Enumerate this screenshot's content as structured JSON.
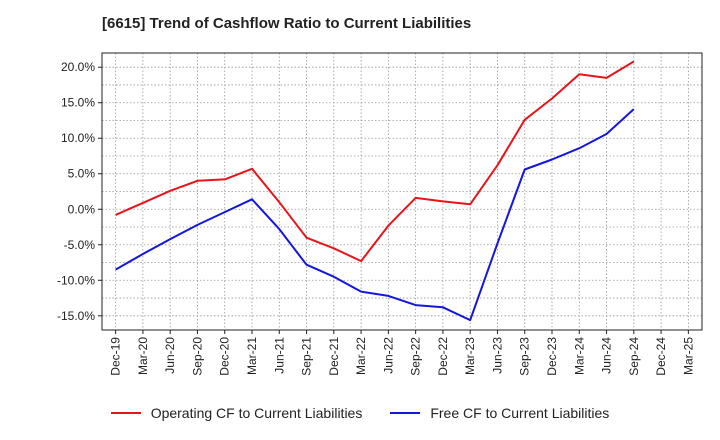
{
  "title": "[6615]  Trend of Cashflow Ratio to Current Liabilities",
  "chart_data": {
    "type": "line",
    "x": [
      "Dec-19",
      "Mar-20",
      "Jun-20",
      "Sep-20",
      "Dec-20",
      "Mar-21",
      "Jun-21",
      "Sep-21",
      "Dec-21",
      "Mar-22",
      "Jun-22",
      "Sep-22",
      "Dec-22",
      "Mar-23",
      "Jun-23",
      "Sep-23",
      "Dec-23",
      "Mar-24",
      "Jun-24",
      "Sep-24",
      "Dec-24",
      "Mar-25"
    ],
    "ylim": [
      -17,
      22
    ],
    "yticks": [
      -15,
      -10,
      -5,
      0,
      5,
      10,
      15,
      20
    ],
    "ytick_labels": [
      "-15.0%",
      "-10.0%",
      "-5.0%",
      "0.0%",
      "5.0%",
      "10.0%",
      "15.0%",
      "20.0%"
    ],
    "grid": true,
    "legend_position": "bottom",
    "series": [
      {
        "name": "Operating CF to Current Liabilities",
        "color": "#e8141b",
        "values": [
          -0.8,
          0.9,
          2.6,
          4.0,
          4.2,
          5.7,
          1.0,
          -4.0,
          -5.5,
          -7.3,
          -2.3,
          1.6,
          1.1,
          0.7,
          6.2,
          12.6,
          15.6,
          19.0,
          18.5,
          20.8,
          null,
          null
        ]
      },
      {
        "name": "Free CF to Current Liabilities",
        "color": "#1515e0",
        "values": [
          -8.5,
          -6.3,
          -4.2,
          -2.2,
          -0.4,
          1.4,
          -2.8,
          -7.8,
          -9.5,
          -11.6,
          -12.2,
          -13.5,
          -13.8,
          -15.6,
          -4.8,
          5.6,
          7.0,
          8.6,
          10.6,
          14.1,
          null,
          null
        ]
      }
    ]
  }
}
